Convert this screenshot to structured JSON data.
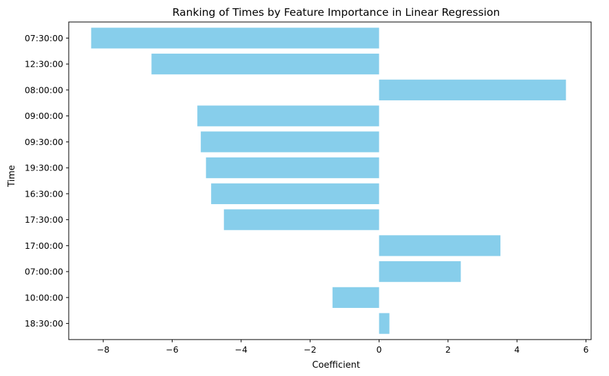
{
  "chart_data": {
    "type": "bar",
    "orientation": "horizontal",
    "title": "Ranking of Times by Feature Importance in Linear Regression",
    "xlabel": "Coefficient",
    "ylabel": "Time",
    "categories": [
      "07:30:00",
      "12:30:00",
      "08:00:00",
      "09:00:00",
      "09:30:00",
      "19:30:00",
      "16:30:00",
      "17:30:00",
      "17:00:00",
      "07:00:00",
      "10:00:00",
      "18:30:00"
    ],
    "values": [
      -8.35,
      -6.6,
      5.42,
      -5.27,
      -5.17,
      -5.02,
      -4.87,
      -4.5,
      3.52,
      2.37,
      -1.35,
      0.3
    ],
    "xlim": [
      -9.0,
      6.15
    ],
    "xticks": [
      -8,
      -6,
      -4,
      -2,
      0,
      2,
      4,
      6
    ],
    "xtick_labels": [
      "−8",
      "−6",
      "−4",
      "−2",
      "0",
      "2",
      "4",
      "6"
    ],
    "bar_color": "#87ceeb",
    "grid": false,
    "legend": "none"
  }
}
